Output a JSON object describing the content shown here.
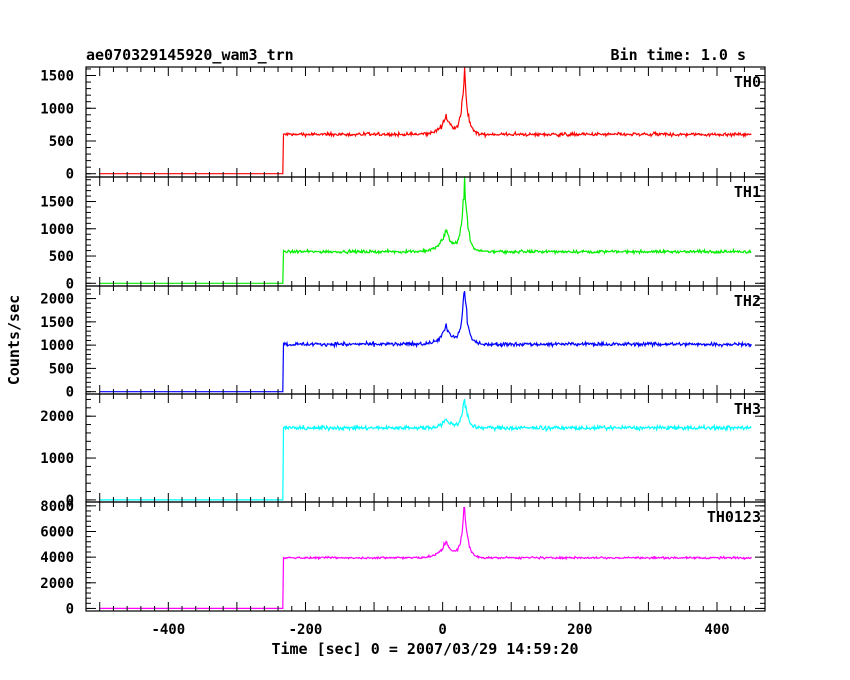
{
  "chart_data": {
    "type": "line",
    "title": "ae070329145920_wam3_trn",
    "subtitle": "Bin time: 1.0 s",
    "xlabel": "Time [sec] 0 = 2007/03/29 14:59:20",
    "ylabel": "Counts/sec",
    "xlim": [
      -520,
      470
    ],
    "x_ticks": [
      -400,
      -200,
      0,
      200,
      400
    ],
    "panels": [
      {
        "name": "TH0",
        "color": "#ff0000",
        "ylim": [
          -50,
          1630
        ],
        "y_ticks": [
          0,
          500,
          1000,
          1500
        ],
        "pre_level": 0,
        "base": 600,
        "noise": 30,
        "peaks": [
          {
            "x": 5,
            "height": 280,
            "width": 10
          },
          {
            "x": 32,
            "height": 960,
            "width": 5
          }
        ]
      },
      {
        "name": "TH1",
        "color": "#00ee00",
        "ylim": [
          -50,
          1950
        ],
        "y_ticks": [
          0,
          500,
          1000,
          1500
        ],
        "pre_level": 0,
        "base": 580,
        "noise": 30,
        "peaks": [
          {
            "x": 5,
            "height": 400,
            "width": 10
          },
          {
            "x": 32,
            "height": 1330,
            "width": 5
          }
        ]
      },
      {
        "name": "TH2",
        "color": "#0000ff",
        "ylim": [
          -50,
          2270
        ],
        "y_ticks": [
          0,
          500,
          1000,
          1500,
          2000
        ],
        "pre_level": 0,
        "base": 1020,
        "noise": 45,
        "peaks": [
          {
            "x": 5,
            "height": 380,
            "width": 10
          },
          {
            "x": 32,
            "height": 1230,
            "width": 5
          }
        ]
      },
      {
        "name": "TH3",
        "color": "#00ffff",
        "ylim": [
          -50,
          2530
        ],
        "y_ticks": [
          0,
          1000,
          2000
        ],
        "pre_level": 0,
        "base": 1720,
        "noise": 55,
        "peaks": [
          {
            "x": 5,
            "height": 200,
            "width": 10
          },
          {
            "x": 32,
            "height": 700,
            "width": 5
          }
        ]
      },
      {
        "name": "TH0123",
        "color": "#ff00ff",
        "ylim": [
          -200,
          8300
        ],
        "y_ticks": [
          0,
          2000,
          4000,
          6000,
          8000
        ],
        "pre_level": 0,
        "base": 3950,
        "noise": 90,
        "peaks": [
          {
            "x": 5,
            "height": 1300,
            "width": 10
          },
          {
            "x": 32,
            "height": 4200,
            "width": 5
          }
        ]
      }
    ],
    "step_x": -232,
    "x_start": -500,
    "x_end": 450,
    "grid": false,
    "legend": "none"
  }
}
